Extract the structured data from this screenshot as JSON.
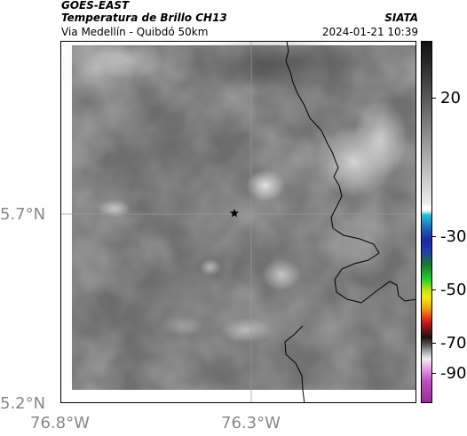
{
  "header": {
    "satellite": "GOES-EAST",
    "product": "Temperatura de Brillo CH13",
    "source": "SIATA",
    "region": "Via Medellín - Quibdó 50km",
    "datetime": "2024-01-21 10:39"
  },
  "axes": {
    "lat_labels": [
      "5.7°N",
      "5.2°N"
    ],
    "lon_labels": [
      "76.8°W",
      "76.3°W"
    ]
  },
  "colorbar": {
    "tick_labels": [
      "20",
      "-30",
      "-50",
      "-70",
      "-90"
    ],
    "colors": {
      "warm": "#111111",
      "cyan": "#22c4d8",
      "blue": "#1e3cb4",
      "green": "#22d230",
      "yellow": "#f2ea10",
      "red": "#c81818",
      "magenta": "#9a2c9a"
    }
  },
  "map": {
    "marker_icon": "star-icon"
  }
}
